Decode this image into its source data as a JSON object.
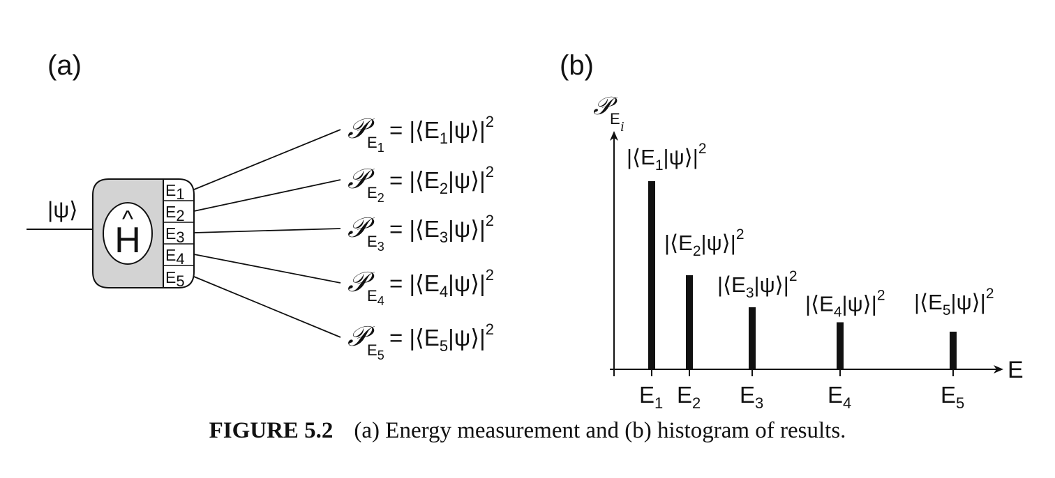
{
  "panel_a": {
    "label": "(a)",
    "input_state": "|ψ⟩",
    "operator": "H",
    "operator_hat": "^",
    "outputs": [
      {
        "port_base": "E",
        "port_sub": "1",
        "prob_symbol": "𝒫",
        "prob_sub_base": "E",
        "prob_sub_index": "1",
        "lhs": " = |⟨E",
        "idx": "1",
        "rhs": "|ψ⟩|",
        "power": "2"
      },
      {
        "port_base": "E",
        "port_sub": "2",
        "prob_symbol": "𝒫",
        "prob_sub_base": "E",
        "prob_sub_index": "2",
        "lhs": " = |⟨E",
        "idx": "2",
        "rhs": "|ψ⟩|",
        "power": "2"
      },
      {
        "port_base": "E",
        "port_sub": "3",
        "prob_symbol": "𝒫",
        "prob_sub_base": "E",
        "prob_sub_index": "3",
        "lhs": " = |⟨E",
        "idx": "3",
        "rhs": "|ψ⟩|",
        "power": "2"
      },
      {
        "port_base": "E",
        "port_sub": "4",
        "prob_symbol": "𝒫",
        "prob_sub_base": "E",
        "prob_sub_index": "4",
        "lhs": " = |⟨E",
        "idx": "4",
        "rhs": "|ψ⟩|",
        "power": "2"
      },
      {
        "port_base": "E",
        "port_sub": "5",
        "prob_symbol": "𝒫",
        "prob_sub_base": "E",
        "prob_sub_index": "5",
        "lhs": " = |⟨E",
        "idx": "5",
        "rhs": "|ψ⟩|",
        "power": "2"
      }
    ]
  },
  "panel_b": {
    "label": "(b)",
    "y_axis_symbol": "𝒫",
    "y_axis_sub_base": "E",
    "y_axis_sub_index": "i",
    "x_axis_label": "E",
    "bars": [
      {
        "tick_base": "E",
        "tick_sub": "1",
        "label_pre": "|⟨E",
        "label_idx": "1",
        "label_post": "|ψ⟩|",
        "label_power": "2",
        "value": 1.0
      },
      {
        "tick_base": "E",
        "tick_sub": "2",
        "label_pre": "|⟨E",
        "label_idx": "2",
        "label_post": "|ψ⟩|",
        "label_power": "2",
        "value": 0.5
      },
      {
        "tick_base": "E",
        "tick_sub": "3",
        "label_pre": "|⟨E",
        "label_idx": "3",
        "label_post": "|ψ⟩|",
        "label_power": "2",
        "value": 0.33
      },
      {
        "tick_base": "E",
        "tick_sub": "4",
        "label_pre": "|⟨E",
        "label_idx": "4",
        "label_post": "|ψ⟩|",
        "label_power": "2",
        "value": 0.25
      },
      {
        "tick_base": "E",
        "tick_sub": "5",
        "label_pre": "|⟨E",
        "label_idx": "5",
        "label_post": "|ψ⟩|",
        "label_power": "2",
        "value": 0.2
      }
    ]
  },
  "caption": {
    "figure_label": "FIGURE 5.2",
    "text": "(a) Energy measurement and (b) histogram of results."
  }
}
